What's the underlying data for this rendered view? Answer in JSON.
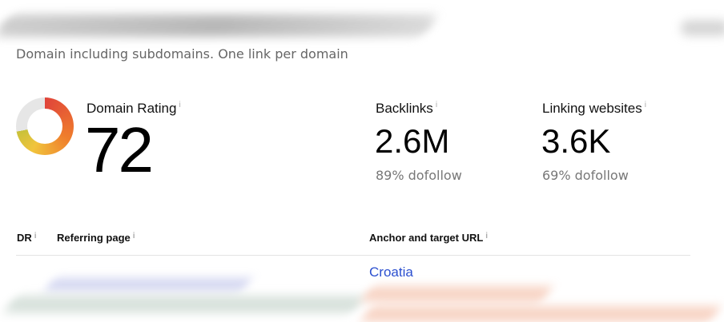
{
  "subtitle": "Domain including subdomains. One link per domain",
  "domain_rating": {
    "label": "Domain Rating",
    "value": "72",
    "gauge_percent": 72,
    "colors": [
      "#e0443a",
      "#ef7d2c",
      "#f1c43c",
      "#c8c13a"
    ],
    "track_color": "#e6e6e6"
  },
  "backlinks": {
    "label": "Backlinks",
    "value": "2.6M",
    "note": "89% dofollow"
  },
  "linking_websites": {
    "label": "Linking websites",
    "value": "3.6K",
    "note": "69% dofollow"
  },
  "info_glyph": "i",
  "table": {
    "columns": [
      "DR",
      "Referring page",
      "Anchor and target URL"
    ],
    "rows": [
      {
        "anchor": "Croatia"
      }
    ]
  },
  "link_color": "#2b4fcf"
}
